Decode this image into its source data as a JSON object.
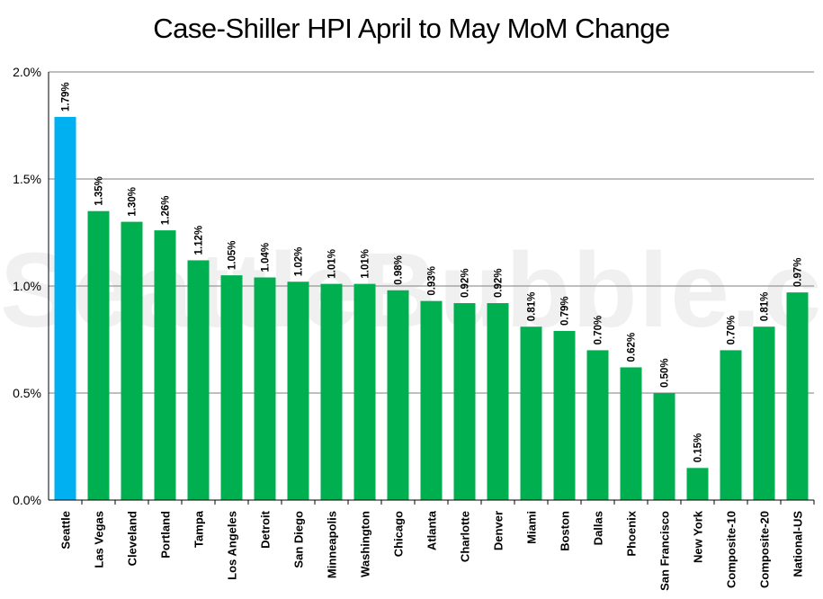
{
  "chart_data": {
    "type": "bar",
    "title": "Case-Shiller HPI April to May MoM Change",
    "watermark": "SeattleBubble.com",
    "categories": [
      "Seattle",
      "Las Vegas",
      "Cleveland",
      "Portland",
      "Tampa",
      "Los Angeles",
      "Detroit",
      "San Diego",
      "Minneapolis",
      "Washington",
      "Chicago",
      "Atlanta",
      "Charlotte",
      "Denver",
      "Miami",
      "Boston",
      "Dallas",
      "Phoenix",
      "San Francisco",
      "New York",
      "Composite-10",
      "Composite-20",
      "National-US"
    ],
    "values": [
      1.79,
      1.35,
      1.3,
      1.26,
      1.12,
      1.05,
      1.04,
      1.02,
      1.01,
      1.01,
      0.98,
      0.93,
      0.92,
      0.92,
      0.81,
      0.79,
      0.7,
      0.62,
      0.5,
      0.15,
      0.7,
      0.81,
      0.97
    ],
    "value_labels": [
      "1.79%",
      "1.35%",
      "1.30%",
      "1.26%",
      "1.12%",
      "1.05%",
      "1.04%",
      "1.02%",
      "1.01%",
      "1.01%",
      "0.98%",
      "0.93%",
      "0.92%",
      "0.92%",
      "0.81%",
      "0.79%",
      "0.70%",
      "0.62%",
      "0.50%",
      "0.15%",
      "0.70%",
      "0.81%",
      "0.97%"
    ],
    "highlight_category": "Seattle",
    "ylim": [
      0,
      2.0
    ],
    "yticks": [
      0.0,
      0.5,
      1.0,
      1.5,
      2.0
    ],
    "ytick_labels": [
      "0.0%",
      "0.5%",
      "1.0%",
      "1.5%",
      "2.0%"
    ],
    "xlabel": "",
    "ylabel": "",
    "grid": true,
    "legend": "none",
    "colors": {
      "bar": "#00b050",
      "highlight": "#00b0f0",
      "grid": "#7f7f7f",
      "axis": "#000000"
    }
  }
}
